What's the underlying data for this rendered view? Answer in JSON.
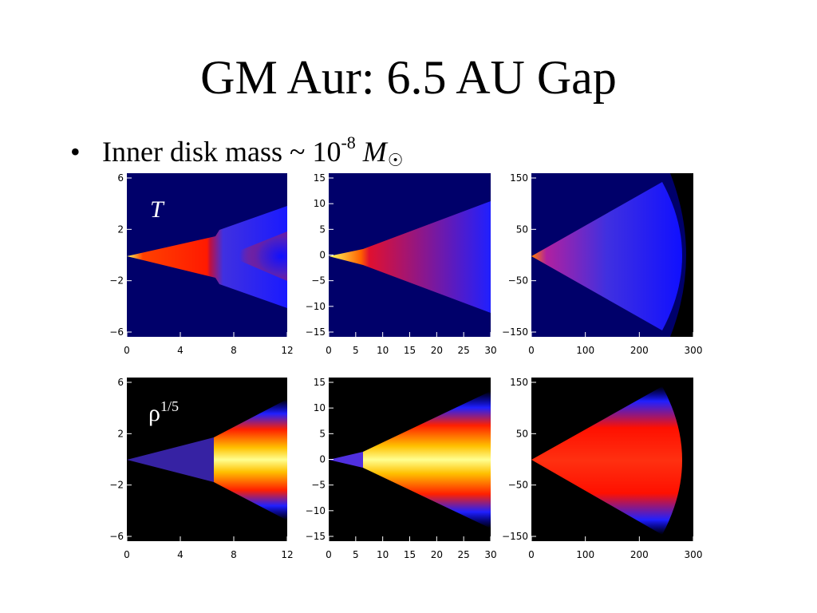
{
  "slide": {
    "title": "GM Aur: 6.5 AU Gap",
    "bullet": {
      "symbol": "•",
      "text": "Inner disk mass ~ 10",
      "exponent": "-8",
      "mass_symbol": "M",
      "sun_symbol": "☉"
    }
  },
  "figure": {
    "row_labels": {
      "temperature": "T",
      "density": "ρ",
      "density_exponent": "1/5"
    },
    "columns": [
      {
        "xticks": [
          "0",
          "4",
          "8",
          "12"
        ],
        "yticks": [
          "6",
          "2",
          "−2",
          "−6"
        ]
      },
      {
        "xticks": [
          "0",
          "5",
          "10",
          "15",
          "20",
          "25",
          "30"
        ],
        "yticks": [
          "15",
          "10",
          "5",
          "0",
          "−5",
          "−10",
          "−15"
        ]
      },
      {
        "xticks": [
          "0",
          "100",
          "200",
          "300"
        ],
        "yticks": [
          "150",
          "50",
          "−50",
          "−150"
        ]
      }
    ],
    "colors": {
      "background_T": "#00006a",
      "background_rho": "#000000",
      "hot": "#ff1a00",
      "warm": "#2020ff",
      "peak": "#ffff80"
    }
  }
}
